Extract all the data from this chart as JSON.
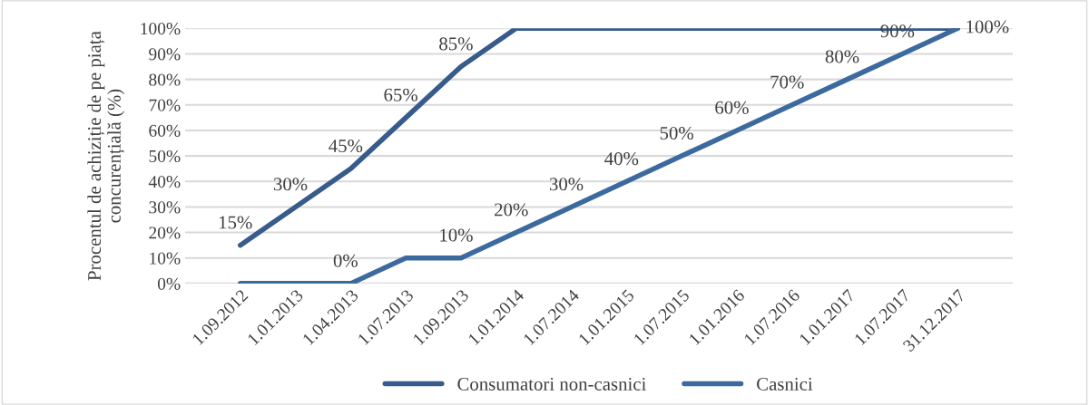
{
  "chart_data": {
    "type": "line",
    "ylabel": "Procentul de achiziție de pe piața concurențială (%)",
    "categories": [
      "1.09.2012",
      "1.01.2013",
      "1.04.2013",
      "1.07.2013",
      "1.09.2013",
      "1.01.2014",
      "1.07.2014",
      "1.01.2015",
      "1.07.2015",
      "1.01.2016",
      "1.07.2016",
      "1.01.2017",
      "1.07.2017",
      "31.12.2017"
    ],
    "series": [
      {
        "name": "Consumatori non-casnici",
        "color": "#375c8c",
        "values": [
          15,
          30,
          45,
          65,
          85,
          100,
          100,
          100,
          100,
          100,
          100,
          100,
          100,
          100
        ],
        "value_labels": [
          "15%",
          "30%",
          "45%",
          "65%",
          "85%",
          null,
          null,
          null,
          null,
          null,
          null,
          null,
          null,
          null
        ]
      },
      {
        "name": "Casnici",
        "color": "#3d6a9e",
        "values": [
          0,
          0,
          0,
          10,
          10,
          20,
          30,
          40,
          50,
          60,
          70,
          80,
          90,
          100
        ],
        "value_labels": [
          null,
          null,
          "0%",
          null,
          "10%",
          "20%",
          "30%",
          "40%",
          "50%",
          "60%",
          "70%",
          "80%",
          "90%",
          "100%"
        ]
      }
    ],
    "ylim": [
      0,
      100
    ],
    "yticks": [
      {
        "value": 0,
        "label": "0%"
      },
      {
        "value": 10,
        "label": "10%"
      },
      {
        "value": 20,
        "label": "20%"
      },
      {
        "value": 30,
        "label": "30%"
      },
      {
        "value": 40,
        "label": "40%"
      },
      {
        "value": 50,
        "label": "50%"
      },
      {
        "value": 60,
        "label": "60%"
      },
      {
        "value": 70,
        "label": "70%"
      },
      {
        "value": 80,
        "label": "80%"
      },
      {
        "value": 90,
        "label": "90%"
      },
      {
        "value": 100,
        "label": "100%"
      }
    ],
    "grid": "y",
    "legend": "bottom",
    "marker": "none",
    "line_style": "solid"
  }
}
